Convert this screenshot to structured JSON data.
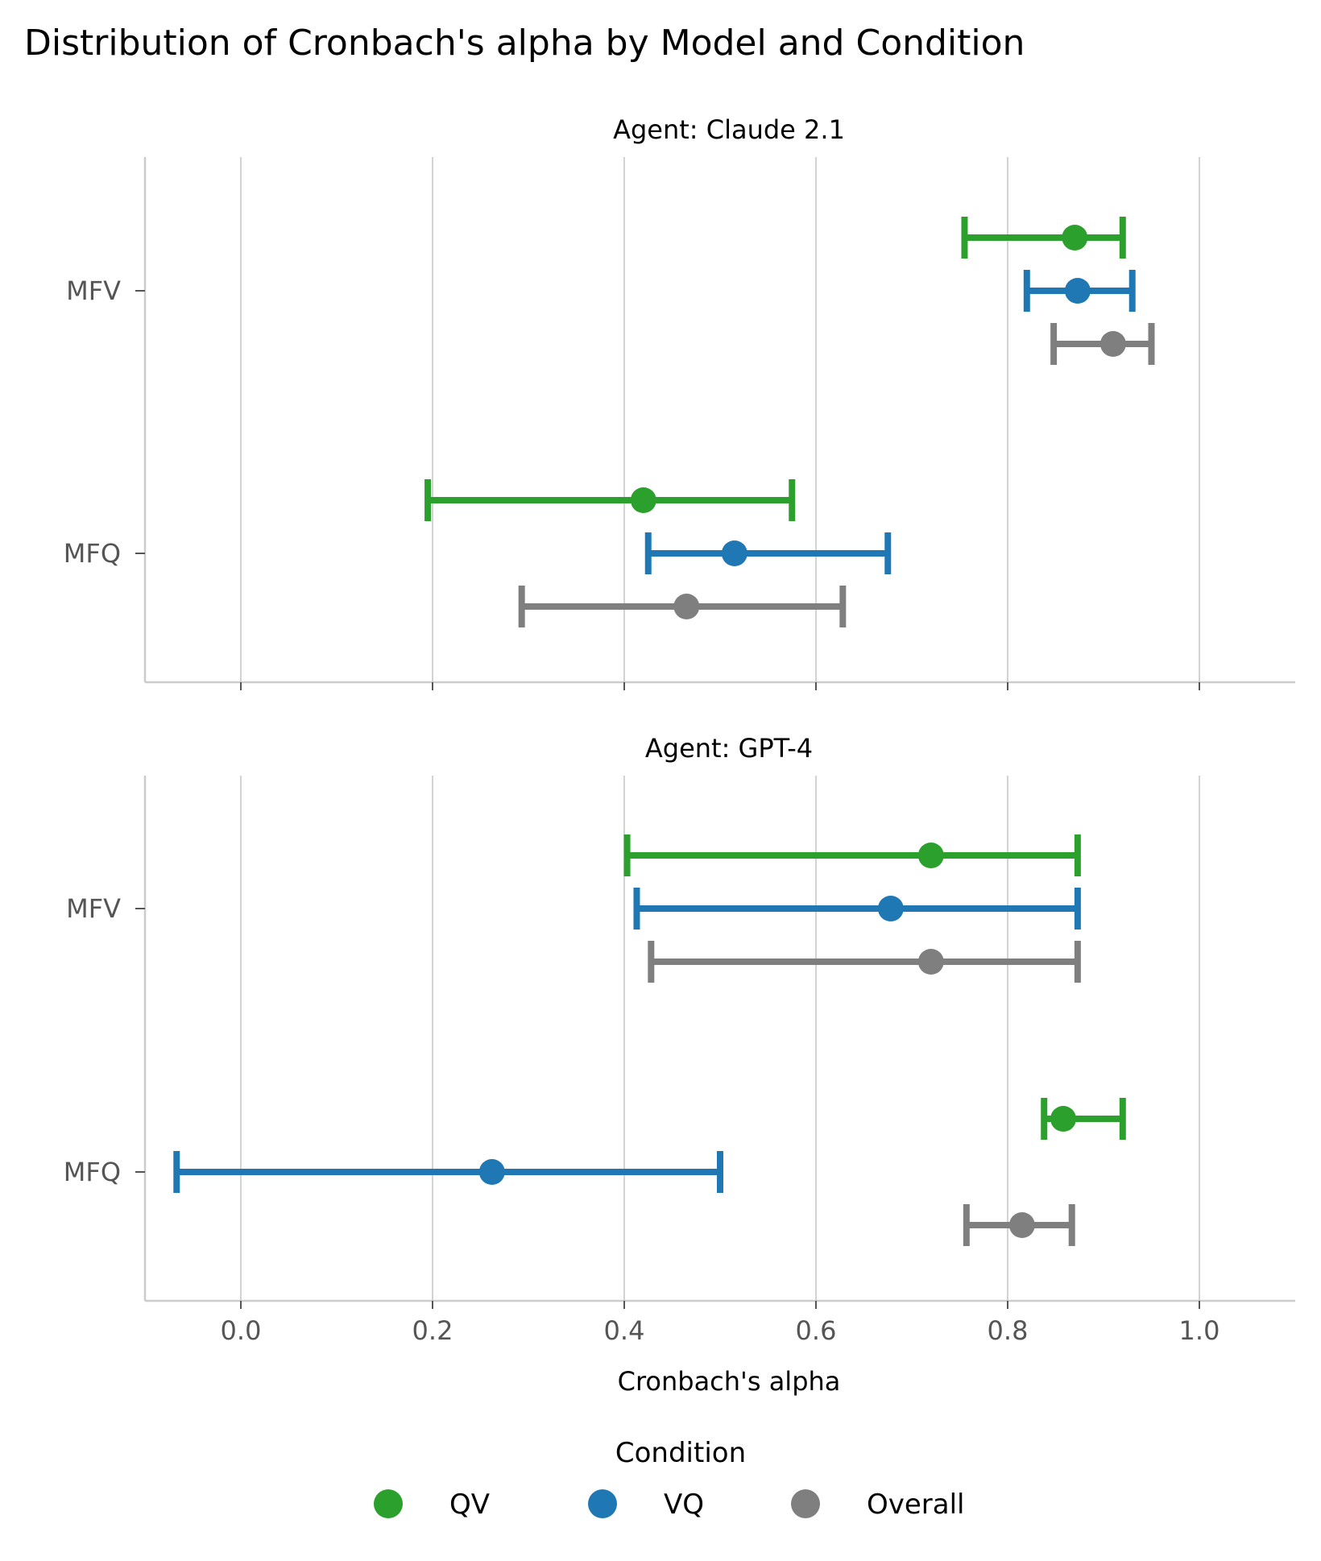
{
  "chart_data": {
    "type": "dot-errorbar",
    "title": "Distribution of Cronbach's alpha by Model and Condition",
    "xlabel": "Cronbach's alpha",
    "xlim": [
      -0.1,
      1.1
    ],
    "xticks": [
      0.0,
      0.2,
      0.4,
      0.6,
      0.8,
      1.0
    ],
    "xtick_labels": [
      "0.0",
      "0.2",
      "0.4",
      "0.6",
      "0.8",
      "1.0"
    ],
    "grid": "vertical",
    "categories": [
      "MFV",
      "MFQ"
    ],
    "legend": {
      "title": "Condition",
      "placement": "bottom-center",
      "entries": [
        "QV",
        "VQ",
        "Overall"
      ]
    },
    "colors": {
      "QV": "#2ca02c",
      "VQ": "#1f77b4",
      "Overall": "#7f7f7f"
    },
    "panels": [
      {
        "title": "Agent: Claude 2.1",
        "series": [
          {
            "name": "QV",
            "points": [
              {
                "category": "MFV",
                "value": 0.87,
                "low": 0.755,
                "high": 0.92
              },
              {
                "category": "MFQ",
                "value": 0.42,
                "low": 0.195,
                "high": 0.575
              }
            ]
          },
          {
            "name": "VQ",
            "points": [
              {
                "category": "MFV",
                "value": 0.873,
                "low": 0.82,
                "high": 0.93
              },
              {
                "category": "MFQ",
                "value": 0.515,
                "low": 0.425,
                "high": 0.675
              }
            ]
          },
          {
            "name": "Overall",
            "points": [
              {
                "category": "MFV",
                "value": 0.91,
                "low": 0.848,
                "high": 0.95
              },
              {
                "category": "MFQ",
                "value": 0.465,
                "low": 0.293,
                "high": 0.628
              }
            ]
          }
        ]
      },
      {
        "title": "Agent: GPT-4",
        "series": [
          {
            "name": "QV",
            "points": [
              {
                "category": "MFV",
                "value": 0.72,
                "low": 0.403,
                "high": 0.873
              },
              {
                "category": "MFQ",
                "value": 0.858,
                "low": 0.838,
                "high": 0.92
              }
            ]
          },
          {
            "name": "VQ",
            "points": [
              {
                "category": "MFV",
                "value": 0.678,
                "low": 0.413,
                "high": 0.873
              },
              {
                "category": "MFQ",
                "value": 0.262,
                "low": -0.067,
                "high": 0.5
              }
            ]
          },
          {
            "name": "Overall",
            "points": [
              {
                "category": "MFV",
                "value": 0.72,
                "low": 0.428,
                "high": 0.873
              },
              {
                "category": "MFQ",
                "value": 0.815,
                "low": 0.757,
                "high": 0.867
              }
            ]
          }
        ]
      }
    ]
  }
}
